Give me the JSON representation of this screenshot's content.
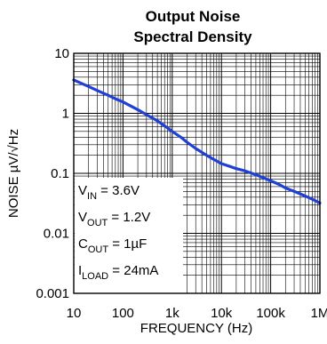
{
  "chart_data": {
    "type": "line",
    "title_line1": "Output Noise",
    "title_line2": "Spectral Density",
    "xlabel": "FREQUENCY (Hz)",
    "ylabel": "NOISE µV/√Hz",
    "x_scale": "log",
    "y_scale": "log",
    "xlim": [
      10,
      1000000
    ],
    "ylim": [
      0.001,
      10
    ],
    "grid": true,
    "x_ticks": [
      "10",
      "100",
      "1k",
      "10k",
      "100k",
      "1M"
    ],
    "y_ticks": [
      "10",
      "1",
      "0.1",
      "0.01",
      "0.001"
    ],
    "series": [
      {
        "color": "#1f3fd6",
        "x": [
          10,
          15,
          20,
          30,
          50,
          70,
          100,
          150,
          200,
          300,
          500,
          700,
          1000,
          1500,
          2000,
          3000,
          5000,
          7000,
          10000,
          15000,
          20000,
          30000,
          50000,
          70000,
          100000,
          150000,
          200000,
          300000,
          500000,
          700000,
          1000000
        ],
        "y": [
          3.6,
          3.1,
          2.8,
          2.4,
          2.0,
          1.75,
          1.55,
          1.3,
          1.15,
          0.95,
          0.75,
          0.62,
          0.5,
          0.4,
          0.33,
          0.26,
          0.2,
          0.17,
          0.145,
          0.13,
          0.12,
          0.11,
          0.095,
          0.085,
          0.075,
          0.065,
          0.057,
          0.05,
          0.042,
          0.037,
          0.032
        ]
      }
    ],
    "conditions": [
      {
        "main": "V",
        "sub": "IN",
        "rest": " = 3.6V"
      },
      {
        "main": "V",
        "sub": "OUT",
        "rest": " = 1.2V"
      },
      {
        "main": "C",
        "sub": "OUT",
        "rest": " = 1µF"
      },
      {
        "main": "I",
        "sub": "LOAD",
        "rest": " = 24mA"
      }
    ]
  }
}
